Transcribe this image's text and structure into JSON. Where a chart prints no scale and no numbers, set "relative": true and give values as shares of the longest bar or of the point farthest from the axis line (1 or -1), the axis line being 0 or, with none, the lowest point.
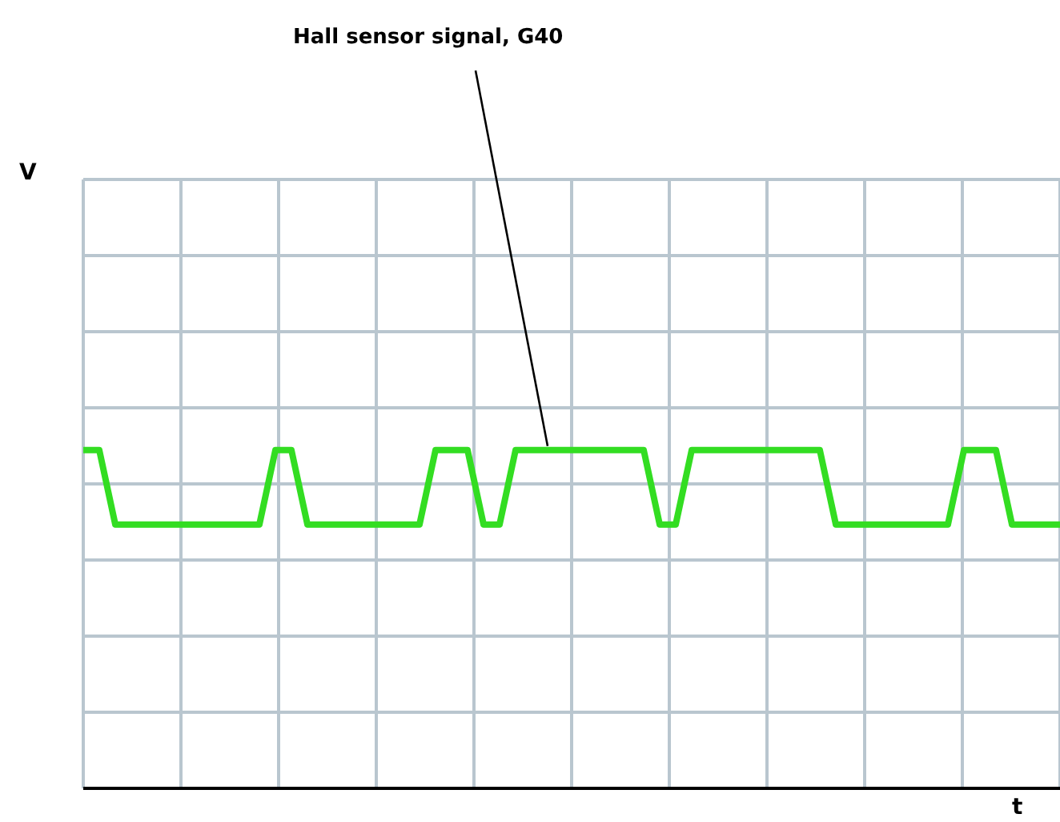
{
  "chart_data": {
    "type": "line",
    "relative": true,
    "xlabel": "t",
    "annotations": [
      "V"
    ],
    "grid": true,
    "marker": "none",
    "line_style": "solid",
    "categories": [
      null,
      null,
      null,
      null,
      null,
      null,
      null,
      null,
      null,
      null,
      null,
      null,
      null,
      null,
      null,
      null,
      null,
      null,
      null,
      null,
      null,
      null,
      null,
      null,
      null,
      null,
      null,
      null,
      null,
      null,
      null,
      null,
      null,
      null,
      null,
      null,
      null,
      null,
      null,
      null,
      null,
      null,
      null,
      null,
      null,
      null,
      null,
      null,
      null,
      null,
      null,
      null,
      null,
      null,
      null,
      null,
      null,
      null,
      null,
      null,
      null,
      null
    ],
    "series": [
      {
        "name": "Hall sensor signal, G40",
        "color": "#33dd22",
        "values": [
          1,
          1,
          0.78,
          0.78,
          0.78,
          0.78,
          0.78,
          0.78,
          0.78,
          0.78,
          0.78,
          0.78,
          1,
          1,
          0.78,
          0.78,
          0.78,
          0.78,
          0.78,
          0.78,
          0.78,
          0.78,
          1,
          1,
          1,
          0.78,
          0.78,
          1,
          1,
          1,
          1,
          1,
          1,
          1,
          1,
          1,
          0.78,
          0.78,
          1,
          1,
          1,
          1,
          1,
          1,
          1,
          1,
          1,
          0.78,
          0.78,
          0.78,
          0.78,
          0.78,
          0.78,
          0.78,
          0.78,
          1,
          1,
          1,
          0.78,
          0.78,
          0.78,
          0.78
        ]
      }
    ]
  }
}
